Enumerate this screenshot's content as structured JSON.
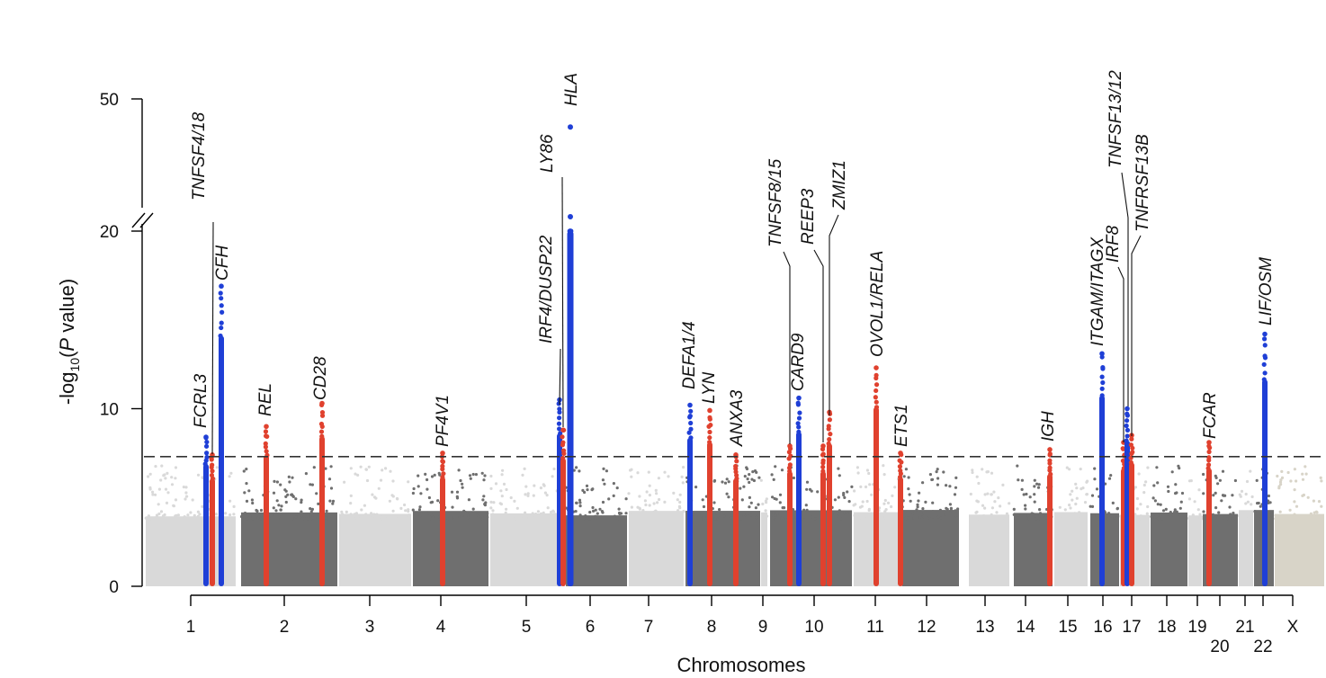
{
  "chart_data": {
    "type": "scatter",
    "subtype": "manhattan",
    "title": "",
    "xlabel": "Chromosomes",
    "ylabel_main": "-log",
    "ylabel_sub": "10",
    "ylabel_paren_open": "(",
    "ylabel_p": "P",
    "ylabel_rest": " value)",
    "y_scale": "broken",
    "y_break": [
      20,
      40
    ],
    "ylim": [
      0,
      50
    ],
    "y_ticks": [
      {
        "value": 0,
        "label": "0"
      },
      {
        "value": 10,
        "label": "10"
      },
      {
        "value": 20,
        "label": "20"
      },
      {
        "value": 50,
        "label": "50"
      }
    ],
    "significance_threshold": 7.3,
    "chromosome_labels": [
      {
        "chrom": "1",
        "label": "1"
      },
      {
        "chrom": "2",
        "label": "2"
      },
      {
        "chrom": "3",
        "label": "3"
      },
      {
        "chrom": "4",
        "label": "4"
      },
      {
        "chrom": "5",
        "label": "5"
      },
      {
        "chrom": "6",
        "label": "6"
      },
      {
        "chrom": "7",
        "label": "7"
      },
      {
        "chrom": "8",
        "label": "8"
      },
      {
        "chrom": "9",
        "label": "9"
      },
      {
        "chrom": "10",
        "label": "10"
      },
      {
        "chrom": "11",
        "label": "11"
      },
      {
        "chrom": "12",
        "label": "12"
      },
      {
        "chrom": "13",
        "label": "13"
      },
      {
        "chrom": "14",
        "label": "14"
      },
      {
        "chrom": "15",
        "label": "15"
      },
      {
        "chrom": "16",
        "label": "16"
      },
      {
        "chrom": "17",
        "label": "17"
      },
      {
        "chrom": "18",
        "label": "18"
      },
      {
        "chrom": "19",
        "label": "19"
      },
      {
        "chrom": "20",
        "label": "20"
      },
      {
        "chrom": "21",
        "label": "21"
      },
      {
        "chrom": "22",
        "label": "22"
      },
      {
        "chrom": "X",
        "label": "X"
      }
    ],
    "loci": [
      {
        "gene": "FCRL3",
        "chrom": "1",
        "peak": 8.4,
        "color": "blue"
      },
      {
        "gene": "TNFSF4/18",
        "chrom": "1",
        "peak": 7.4,
        "color": "red"
      },
      {
        "gene": "CFH",
        "chrom": "1",
        "peak": 16.9,
        "color": "blue"
      },
      {
        "gene": "REL",
        "chrom": "2",
        "peak": 9.0,
        "color": "red"
      },
      {
        "gene": "CD28",
        "chrom": "2",
        "peak": 10.3,
        "color": "red"
      },
      {
        "gene": "PF4V1",
        "chrom": "4",
        "peak": 7.5,
        "color": "red"
      },
      {
        "gene": "IRF4/DUSP22",
        "chrom": "6",
        "peak": 10.5,
        "color": "blue"
      },
      {
        "gene": "LY86",
        "chrom": "6",
        "peak": 8.8,
        "color": "red"
      },
      {
        "gene": "HLA",
        "chrom": "6",
        "peak": 47.5,
        "color": "blue"
      },
      {
        "gene": "DEFA1/4",
        "chrom": "8",
        "peak": 10.2,
        "color": "blue"
      },
      {
        "gene": "LYN",
        "chrom": "8",
        "peak": 9.9,
        "color": "red"
      },
      {
        "gene": "ANXA3",
        "chrom": "8",
        "peak": 7.4,
        "color": "red"
      },
      {
        "gene": "TNFSF8/15",
        "chrom": "9",
        "peak": 7.9,
        "color": "red"
      },
      {
        "gene": "CARD9",
        "chrom": "9",
        "peak": 10.6,
        "color": "blue"
      },
      {
        "gene": "REEP3",
        "chrom": "10",
        "peak": 7.9,
        "color": "red"
      },
      {
        "gene": "ZMIZ1",
        "chrom": "10",
        "peak": 9.8,
        "color": "red"
      },
      {
        "gene": "OVOL1/RELA",
        "chrom": "11",
        "peak": 12.3,
        "color": "red"
      },
      {
        "gene": "ETS1",
        "chrom": "11",
        "peak": 7.5,
        "color": "red"
      },
      {
        "gene": "IGH",
        "chrom": "14",
        "peak": 7.7,
        "color": "red"
      },
      {
        "gene": "ITGAM/ITAGX",
        "chrom": "16",
        "peak": 13.1,
        "color": "blue"
      },
      {
        "gene": "IRF8",
        "chrom": "16",
        "peak": 8.1,
        "color": "red"
      },
      {
        "gene": "TNFSF13/12",
        "chrom": "17",
        "peak": 10.0,
        "color": "blue"
      },
      {
        "gene": "TNFRSF13B",
        "chrom": "17",
        "peak": 8.5,
        "color": "red"
      },
      {
        "gene": "FCAR",
        "chrom": "19",
        "peak": 8.1,
        "color": "red"
      },
      {
        "gene": "LIF/OSM",
        "chrom": "22",
        "peak": 14.2,
        "color": "blue"
      }
    ]
  },
  "colors": {
    "highlight_blue": "#1f3fd6",
    "highlight_red": "#e0412e",
    "chrom_light": "#d9d9d9",
    "chrom_dark": "#6f6f6f",
    "chrom_x": "#d8d4c8",
    "threshold": "#333333"
  }
}
